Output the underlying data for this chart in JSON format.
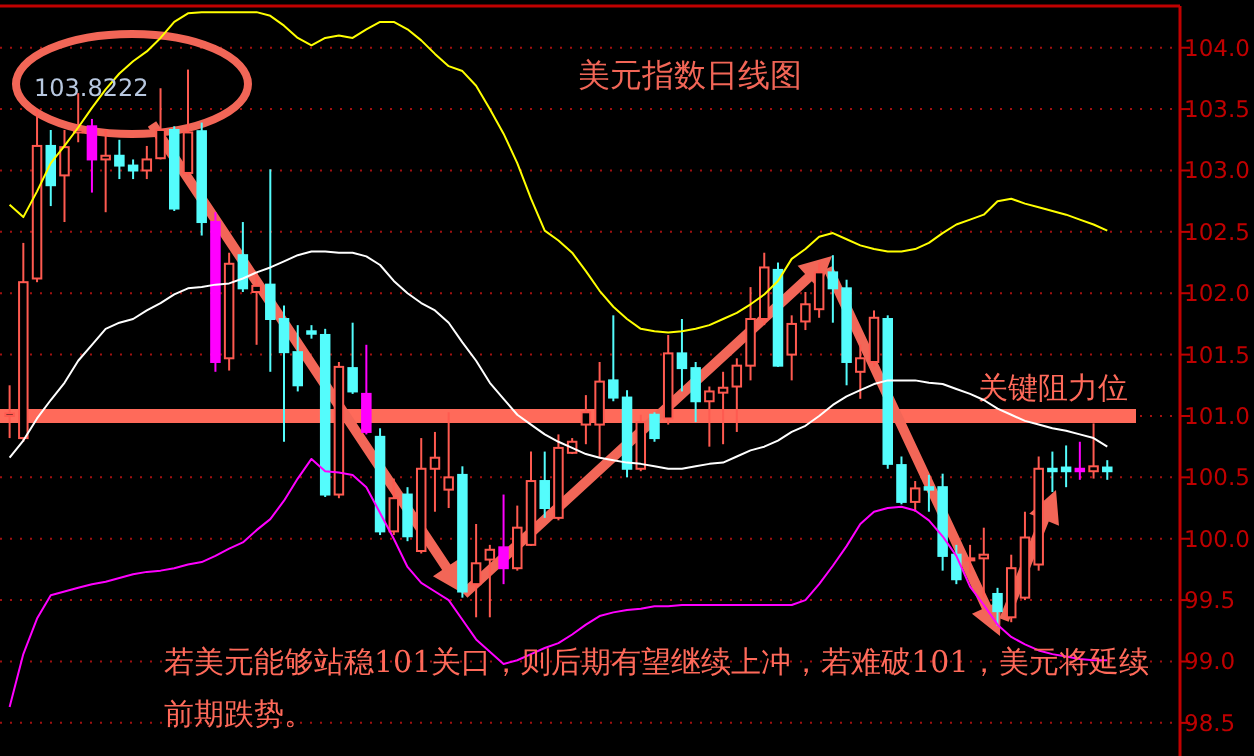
{
  "chart_data": {
    "type": "candlestick",
    "title": "美元指数日线图",
    "categories": [
      null,
      null,
      null,
      null,
      null,
      null,
      null,
      null,
      null,
      null,
      null,
      null,
      null,
      null,
      null,
      null,
      null,
      null,
      null,
      null,
      null,
      null,
      null,
      null,
      null,
      null,
      null,
      null,
      null,
      null,
      null,
      null,
      null,
      null,
      null,
      null,
      null,
      null,
      null,
      null,
      null,
      null,
      null,
      null,
      null,
      null,
      null,
      null,
      null,
      null,
      null,
      null,
      null,
      null,
      null,
      null,
      null,
      null,
      null,
      null,
      null,
      null,
      null,
      null,
      null,
      null,
      null,
      null,
      null,
      null,
      null,
      null,
      null,
      null,
      null,
      null,
      null,
      null,
      null,
      null,
      null
    ],
    "ohlc": [
      [
        101.0,
        101.25,
        100.82,
        101.02
      ],
      [
        100.82,
        102.41,
        100.79,
        102.09
      ],
      [
        102.12,
        103.5,
        102.09,
        103.2
      ],
      [
        103.2,
        103.33,
        102.71,
        102.88
      ],
      [
        102.96,
        103.33,
        102.58,
        103.19
      ],
      [
        103.31,
        103.63,
        103.23,
        103.33
      ],
      [
        103.36,
        103.42,
        102.82,
        103.09
      ],
      [
        103.09,
        103.33,
        102.66,
        103.12
      ],
      [
        103.12,
        103.25,
        102.93,
        103.04
      ],
      [
        103.04,
        103.09,
        102.93,
        103.0
      ],
      [
        103.0,
        103.2,
        102.93,
        103.09
      ],
      [
        103.1,
        103.67,
        103.09,
        103.33
      ],
      [
        103.33,
        103.36,
        102.67,
        102.69
      ],
      [
        102.98,
        103.8222,
        102.96,
        103.31
      ],
      [
        103.32,
        103.39,
        102.47,
        102.58
      ],
      [
        102.58,
        102.66,
        101.36,
        101.44
      ],
      [
        101.47,
        102.33,
        101.37,
        102.24
      ],
      [
        102.31,
        102.58,
        102.01,
        102.04
      ],
      [
        102.01,
        102.17,
        101.58,
        102.06
      ],
      [
        102.07,
        103.01,
        101.36,
        101.79
      ],
      [
        101.79,
        101.9,
        100.79,
        101.52
      ],
      [
        101.52,
        101.74,
        101.2,
        101.25
      ],
      [
        101.69,
        101.74,
        101.63,
        101.67
      ],
      [
        101.66,
        101.71,
        100.34,
        100.36
      ],
      [
        100.36,
        101.44,
        100.33,
        101.4
      ],
      [
        101.39,
        101.76,
        101.18,
        101.2
      ],
      [
        101.18,
        101.58,
        100.85,
        100.87
      ],
      [
        100.83,
        100.9,
        100.03,
        100.06
      ],
      [
        100.06,
        100.49,
        100.03,
        100.33
      ],
      [
        100.36,
        100.42,
        99.98,
        100.02
      ],
      [
        99.9,
        100.82,
        99.88,
        100.57
      ],
      [
        100.57,
        100.87,
        100.22,
        100.66
      ],
      [
        100.4,
        101.03,
        100.25,
        100.5
      ],
      [
        100.52,
        100.59,
        99.52,
        99.57
      ],
      [
        99.63,
        100.12,
        99.36,
        99.8
      ],
      [
        99.83,
        99.95,
        99.36,
        99.91
      ],
      [
        99.93,
        100.36,
        99.63,
        99.76
      ],
      [
        99.76,
        100.27,
        99.74,
        100.09
      ],
      [
        99.95,
        100.71,
        99.94,
        100.47
      ],
      [
        100.47,
        100.71,
        100.17,
        100.25
      ],
      [
        100.17,
        100.85,
        100.15,
        100.74
      ],
      [
        100.7,
        100.82,
        100.69,
        100.79
      ],
      [
        100.93,
        101.17,
        100.77,
        101.03
      ],
      [
        100.93,
        101.44,
        100.66,
        101.28
      ],
      [
        101.29,
        101.82,
        101.12,
        101.15
      ],
      [
        101.15,
        101.21,
        100.5,
        100.57
      ],
      [
        100.57,
        101.01,
        100.55,
        100.95
      ],
      [
        101.01,
        101.03,
        100.79,
        100.82
      ],
      [
        100.98,
        101.66,
        100.93,
        101.51
      ],
      [
        101.51,
        101.79,
        101.2,
        101.39
      ],
      [
        101.39,
        101.44,
        100.95,
        101.12
      ],
      [
        101.12,
        101.24,
        100.75,
        101.2
      ],
      [
        101.19,
        101.36,
        100.77,
        101.23
      ],
      [
        101.24,
        101.47,
        100.87,
        101.41
      ],
      [
        101.41,
        102.05,
        101.29,
        101.79
      ],
      [
        101.79,
        102.33,
        101.74,
        102.21
      ],
      [
        102.19,
        102.25,
        101.4,
        101.41
      ],
      [
        101.5,
        101.82,
        101.29,
        101.75
      ],
      [
        101.77,
        102.01,
        101.7,
        101.91
      ],
      [
        101.87,
        102.25,
        101.8,
        102.17
      ],
      [
        102.17,
        102.31,
        101.76,
        102.04
      ],
      [
        102.04,
        102.11,
        101.25,
        101.44
      ],
      [
        101.36,
        101.58,
        101.14,
        101.47
      ],
      [
        101.44,
        101.86,
        101.4,
        101.8
      ],
      [
        101.79,
        101.82,
        100.57,
        100.61
      ],
      [
        100.6,
        100.67,
        100.28,
        100.3
      ],
      [
        100.3,
        100.47,
        100.22,
        100.41
      ],
      [
        100.42,
        100.52,
        100.22,
        100.4
      ],
      [
        100.42,
        100.53,
        99.74,
        99.86
      ],
      [
        99.87,
        99.95,
        99.63,
        99.67
      ],
      [
        99.83,
        99.95,
        99.72,
        99.84
      ],
      [
        99.84,
        100.09,
        99.52,
        99.87
      ],
      [
        99.55,
        99.6,
        99.29,
        99.41
      ],
      [
        99.36,
        99.87,
        99.32,
        99.76
      ],
      [
        99.52,
        100.22,
        99.5,
        100.01
      ],
      [
        99.79,
        100.67,
        99.74,
        100.57
      ],
      [
        100.57,
        100.71,
        100.38,
        100.55
      ],
      [
        100.58,
        100.76,
        100.42,
        100.55
      ],
      [
        100.57,
        100.79,
        100.48,
        100.55
      ],
      [
        100.55,
        100.94,
        100.49,
        100.59
      ],
      [
        100.58,
        100.64,
        100.48,
        100.55
      ]
    ],
    "colors": [
      "#ff5a50",
      "#ff5a50",
      "#ff5a50",
      "#54fcfc",
      "#ff5a50",
      "#ff5a50",
      "#ff00ff",
      "#ff5a50",
      "#54fcfc",
      "#54fcfc",
      "#ff5a50",
      "#ff5a50",
      "#54fcfc",
      "#ff5a50",
      "#54fcfc",
      "#ff00ff",
      "#ff5a50",
      "#54fcfc",
      "#ff5a50",
      "#54fcfc",
      "#54fcfc",
      "#54fcfc",
      "#54fcfc",
      "#54fcfc",
      "#ff5a50",
      "#54fcfc",
      "#ff00ff",
      "#54fcfc",
      "#ff5a50",
      "#54fcfc",
      "#ff5a50",
      "#ff5a50",
      "#ff5a50",
      "#54fcfc",
      "#ff5a50",
      "#ff5a50",
      "#ff00ff",
      "#ff5a50",
      "#ff5a50",
      "#54fcfc",
      "#ff5a50",
      "#ff5a50",
      "#ff5a50",
      "#ff5a50",
      "#54fcfc",
      "#54fcfc",
      "#ff5a50",
      "#54fcfc",
      "#ff5a50",
      "#54fcfc",
      "#54fcfc",
      "#ff5a50",
      "#ff5a50",
      "#ff5a50",
      "#ff5a50",
      "#ff5a50",
      "#54fcfc",
      "#ff5a50",
      "#ff5a50",
      "#ff5a50",
      "#54fcfc",
      "#54fcfc",
      "#ff5a50",
      "#ff5a50",
      "#54fcfc",
      "#54fcfc",
      "#ff5a50",
      "#54fcfc",
      "#54fcfc",
      "#54fcfc",
      "#ff5a50",
      "#ff5a50",
      "#54fcfc",
      "#ff5a50",
      "#ff5a50",
      "#ff5a50",
      "#54fcfc",
      "#54fcfc",
      "#ff00ff",
      "#ff5a50",
      "#54fcfc"
    ],
    "series": [
      {
        "type": "line",
        "color": "#ffff00",
        "values": [
          102.72,
          102.62,
          102.83,
          103.06,
          103.2,
          103.35,
          103.51,
          103.66,
          103.79,
          103.89,
          103.97,
          104.08,
          104.21,
          104.28,
          104.29,
          104.29,
          104.29,
          104.29,
          104.29,
          104.26,
          104.18,
          104.08,
          104.02,
          104.08,
          104.1,
          104.08,
          104.15,
          104.21,
          104.21,
          104.15,
          104.06,
          103.95,
          103.85,
          103.81,
          103.69,
          103.5,
          103.3,
          103.06,
          102.77,
          102.51,
          102.43,
          102.33,
          102.18,
          102.02,
          101.89,
          101.79,
          101.71,
          101.69,
          101.68,
          101.69,
          101.71,
          101.74,
          101.79,
          101.84,
          101.91,
          101.99,
          102.1,
          102.28,
          102.36,
          102.46,
          102.49,
          102.44,
          102.39,
          102.36,
          102.34,
          102.34,
          102.36,
          102.41,
          102.49,
          102.56,
          102.6,
          102.64,
          102.75,
          102.77,
          102.73,
          102.7,
          102.67,
          102.64,
          102.6,
          102.56,
          102.51
        ]
      },
      {
        "type": "line",
        "color": "#ffffff",
        "values": [
          100.66,
          100.8,
          100.98,
          101.13,
          101.27,
          101.45,
          101.58,
          101.71,
          101.76,
          101.79,
          101.86,
          101.92,
          101.99,
          102.04,
          102.05,
          102.07,
          102.08,
          102.12,
          102.17,
          102.21,
          102.26,
          102.31,
          102.34,
          102.34,
          102.33,
          102.33,
          102.3,
          102.23,
          102.1,
          102.0,
          101.92,
          101.86,
          101.76,
          101.6,
          101.45,
          101.27,
          101.14,
          101.01,
          100.93,
          100.85,
          100.79,
          100.74,
          100.69,
          100.66,
          100.64,
          100.62,
          100.61,
          100.59,
          100.57,
          100.57,
          100.59,
          100.61,
          100.62,
          100.67,
          100.72,
          100.75,
          100.8,
          100.87,
          100.92,
          101.0,
          101.09,
          101.16,
          101.21,
          101.26,
          101.29,
          101.29,
          101.29,
          101.27,
          101.26,
          101.22,
          101.18,
          101.13,
          101.06,
          101.01,
          100.96,
          100.93,
          100.9,
          100.88,
          100.85,
          100.82,
          100.75
        ]
      },
      {
        "type": "line",
        "color": "#ff00ff",
        "values": [
          98.63,
          99.06,
          99.35,
          99.54,
          99.57,
          99.6,
          99.63,
          99.65,
          99.68,
          99.71,
          99.73,
          99.74,
          99.76,
          99.79,
          99.81,
          99.86,
          99.92,
          99.97,
          100.07,
          100.16,
          100.31,
          100.49,
          100.65,
          100.55,
          100.54,
          100.52,
          100.42,
          100.21,
          100.0,
          99.77,
          99.64,
          99.57,
          99.5,
          99.34,
          99.18,
          99.08,
          98.98,
          99.01,
          99.06,
          99.11,
          99.15,
          99.22,
          99.3,
          99.37,
          99.4,
          99.42,
          99.43,
          99.45,
          99.45,
          99.46,
          99.46,
          99.46,
          99.46,
          99.46,
          99.46,
          99.46,
          99.46,
          99.46,
          99.5,
          99.63,
          99.78,
          99.94,
          100.12,
          100.22,
          100.25,
          100.26,
          100.23,
          100.15,
          100.02,
          99.86,
          99.61,
          99.46,
          99.3,
          99.2,
          99.14,
          99.09,
          99.06,
          99.04,
          99.02,
          99.01,
          99.01
        ]
      }
    ],
    "ylim": [
      98.23,
      104.34
    ],
    "yticks": [
      {
        "value": 98.5,
        "label": "98.5"
      },
      {
        "value": 99,
        "label": "99.0"
      },
      {
        "value": 99.5,
        "label": "99.5"
      },
      {
        "value": 100,
        "label": "100.0"
      },
      {
        "value": 100.5,
        "label": "100.5"
      },
      {
        "value": 101,
        "label": "101.0"
      },
      {
        "value": 101.5,
        "label": "101.5"
      },
      {
        "value": 102,
        "label": "102.0"
      },
      {
        "value": 102.5,
        "label": "102.5"
      },
      {
        "value": 103,
        "label": "103.0"
      },
      {
        "value": 103.5,
        "label": "103.5"
      },
      {
        "value": 104,
        "label": "104.0"
      }
    ],
    "grid": "y",
    "ref_lines": [
      {
        "axis": "y",
        "value": 101.0,
        "label": "关键阻力位",
        "color": "#ff6a5a"
      }
    ],
    "annotations": [
      "103.8222",
      "若美元能够站稳101关口，则后期有望继续上冲，若难破101，美元将延续前期跌势。"
    ]
  }
}
